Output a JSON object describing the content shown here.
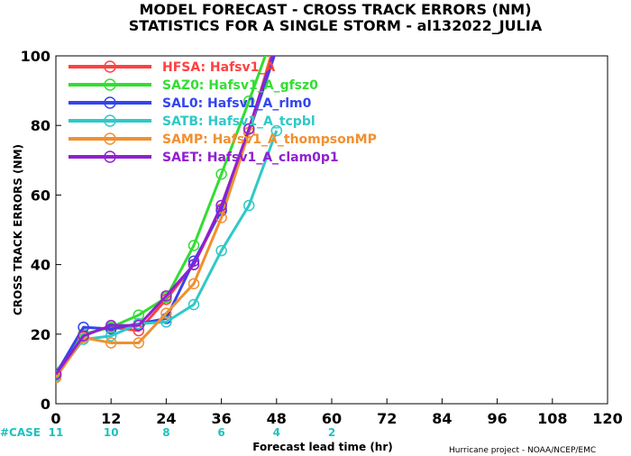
{
  "title_line1": "MODEL FORECAST - CROSS TRACK ERRORS (NM)",
  "title_line2": "STATISTICS FOR A SINGLE STORM - al132022_JULIA",
  "credit": "Hurricane project - NOAA/NCEP/EMC",
  "case_label": "#CASE",
  "case_color": "#20c0c0",
  "chart_data": {
    "type": "line",
    "xlabel": "Forecast lead time (hr)",
    "ylabel": "CROSS TRACK ERRORS (NM)",
    "xlim": [
      0,
      120
    ],
    "ylim": [
      0,
      100
    ],
    "x_ticks": [
      "0",
      "12",
      "24",
      "36",
      "48",
      "60",
      "72",
      "84",
      "96",
      "108",
      "120"
    ],
    "y_ticks": [
      "0",
      "20",
      "40",
      "60",
      "80",
      "100"
    ],
    "case_counts": [
      {
        "x": 0,
        "label": "11"
      },
      {
        "x": 12,
        "label": "10"
      },
      {
        "x": 24,
        "label": "8"
      },
      {
        "x": 36,
        "label": "6"
      },
      {
        "x": 48,
        "label": "4"
      },
      {
        "x": 60,
        "label": "2"
      }
    ],
    "x": [
      0,
      6,
      12,
      18,
      24,
      30,
      36,
      42,
      48
    ],
    "series": [
      {
        "name": "HFSA: Hafsv1_A",
        "color": "#ff4040",
        "values": [
          8,
          20,
          22,
          21,
          30,
          40,
          56,
          79,
          103
        ]
      },
      {
        "name": "SAZ0: Hafsv1_A_gfsz0",
        "color": "#33dd33",
        "values": [
          9,
          20,
          22,
          25.5,
          30.5,
          45.5,
          66,
          87,
          109
        ]
      },
      {
        "name": "SAL0: Hafsv1_A_rlm0",
        "color": "#3344ee",
        "values": [
          8.5,
          22,
          21.5,
          23,
          24.5,
          41,
          55.5,
          78,
          102
        ]
      },
      {
        "name": "SATB: Hafsv1_A_tcpbl",
        "color": "#30c8c8",
        "values": [
          8,
          18.5,
          19.5,
          23,
          23.5,
          28.5,
          44,
          57,
          78.5
        ]
      },
      {
        "name": "SAMP: Hafsv1_A_thompsonMP",
        "color": "#f09030",
        "values": [
          7.5,
          19,
          17.5,
          17.5,
          26,
          34.5,
          53.5,
          78,
          106
        ]
      },
      {
        "name": "SAET: Hafsv1_A_clam0p1",
        "color": "#9020d0",
        "values": [
          8.5,
          19.5,
          22.5,
          22.5,
          31,
          40,
          57,
          79,
          104
        ]
      }
    ]
  }
}
